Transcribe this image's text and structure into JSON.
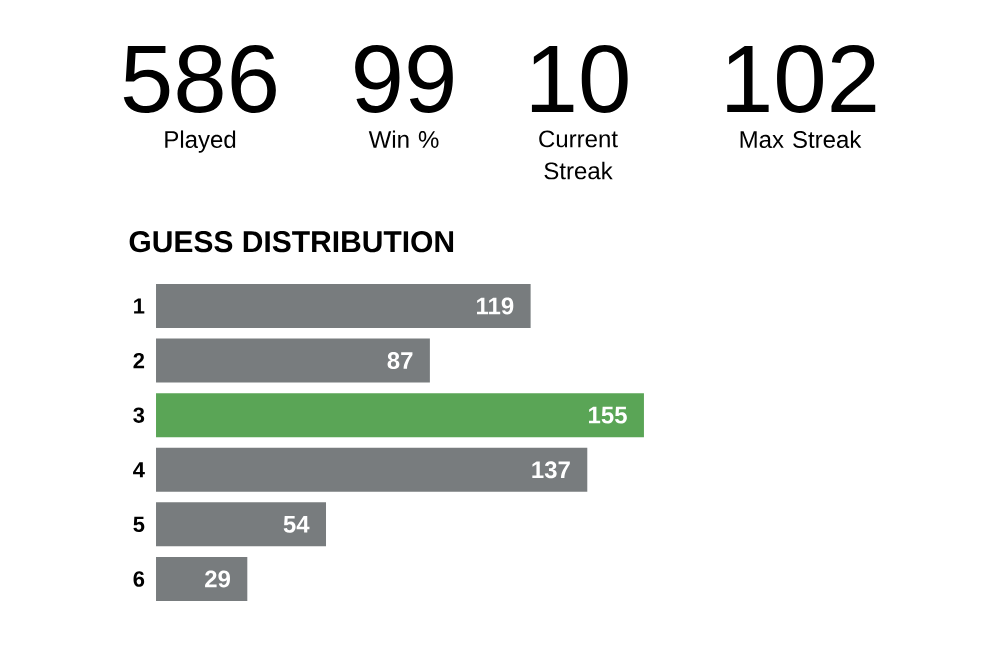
{
  "chart_data": {
    "type": "bar",
    "orientation": "horizontal",
    "title": "GUESS DISTRIBUTION",
    "categories": [
      "1",
      "2",
      "3",
      "4",
      "5",
      "6"
    ],
    "values": [
      119,
      87,
      155,
      137,
      54,
      29
    ],
    "colors": [
      "#787c7e",
      "#787c7e",
      "#5aa556",
      "#787c7e",
      "#787c7e",
      "#787c7e"
    ],
    "data_labels": true,
    "annotations": [
      "586",
      "Played",
      "99",
      "Win %",
      "10",
      "Current Streak",
      "102",
      "Max Streak"
    ]
  }
}
